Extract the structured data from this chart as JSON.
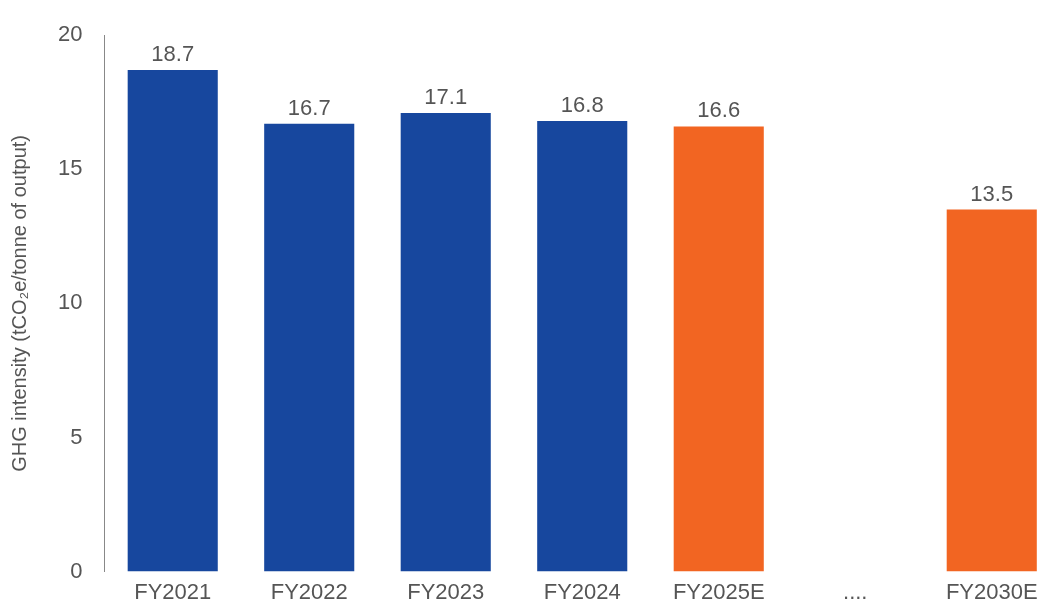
{
  "chart_data": {
    "type": "bar",
    "ylabel": "GHG intensity (tCO₂e/tonne of output)",
    "categories": [
      "FY2021",
      "FY2022",
      "FY2023",
      "FY2024",
      "FY2025E",
      "....",
      "FY2030E"
    ],
    "values": [
      18.7,
      16.7,
      17.1,
      16.8,
      16.6,
      null,
      13.5
    ],
    "colors": [
      "#17479e",
      "#17479e",
      "#17479e",
      "#17479e",
      "#f26522",
      "#f26522",
      "#f26522"
    ],
    "ylim": [
      0,
      20
    ],
    "yticks": [
      0,
      5,
      10,
      15,
      20
    ],
    "grid": false,
    "legend": false,
    "data_labels": true
  }
}
